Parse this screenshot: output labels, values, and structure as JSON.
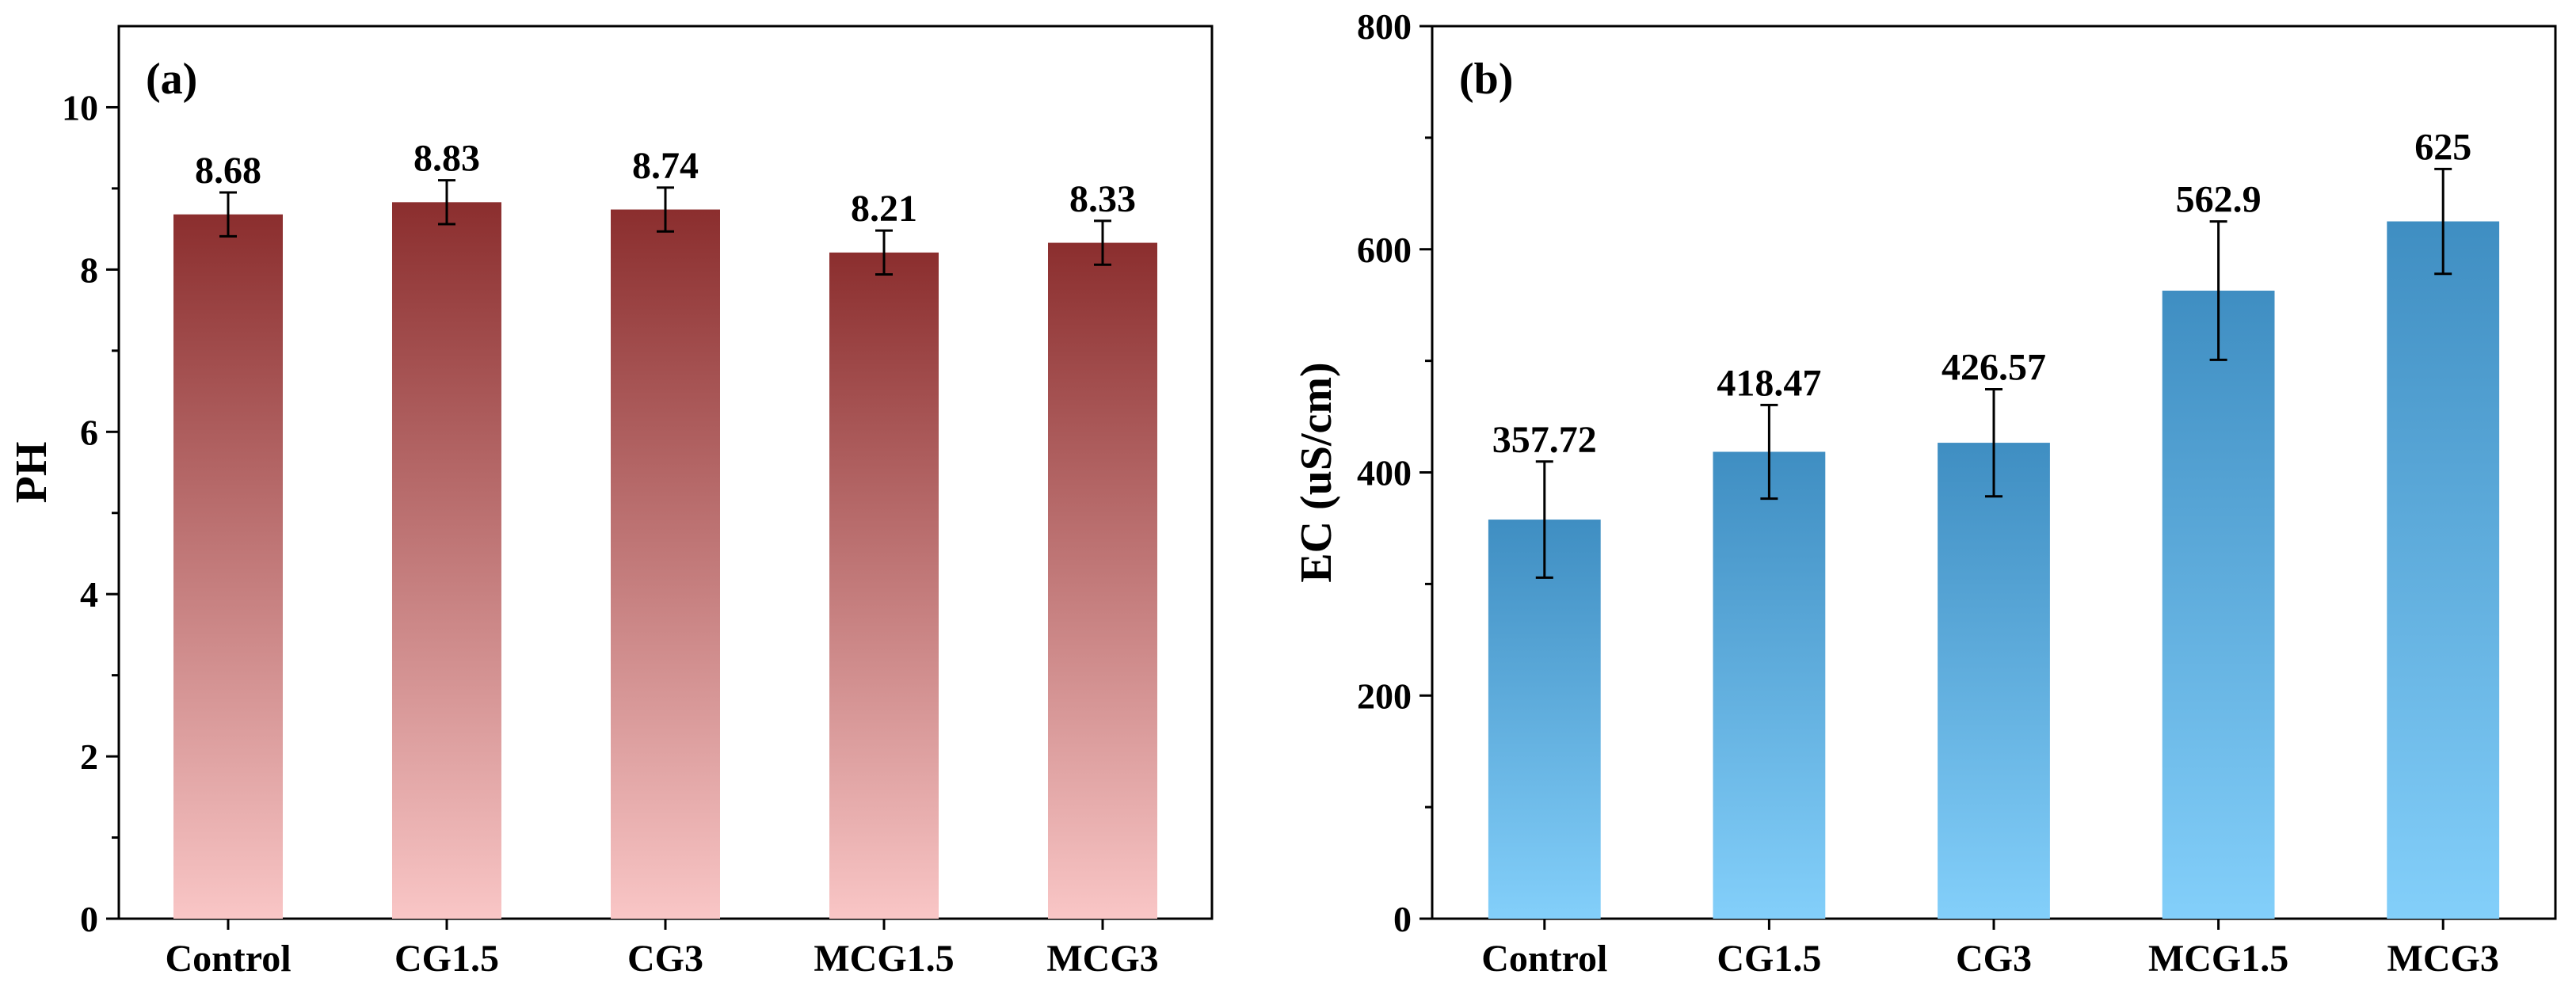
{
  "chart_data": [
    {
      "type": "bar",
      "panel_label": "(a)",
      "title": "",
      "xlabel": "",
      "ylabel": "PH",
      "categories": [
        "Control",
        "CG1.5",
        "CG3",
        "MCG1.5",
        "MCG3"
      ],
      "values": [
        8.68,
        8.83,
        8.74,
        8.21,
        8.33
      ],
      "value_labels": [
        "8.68",
        "8.83",
        "8.74",
        "8.21",
        "8.33"
      ],
      "errors": [
        0.27,
        0.27,
        0.27,
        0.27,
        0.27
      ],
      "ylim": [
        0,
        11
      ],
      "yticks": [
        0,
        2,
        4,
        6,
        8,
        10
      ],
      "ytick_labels": [
        "0",
        "2",
        "4",
        "6",
        "8",
        "10"
      ],
      "gradient": {
        "top": "#8b2e2e",
        "bottom": "#f9c6c6"
      },
      "grid": false
    },
    {
      "type": "bar",
      "panel_label": "(b)",
      "title": "",
      "xlabel": "",
      "ylabel": "EC (uS/cm)",
      "categories": [
        "Control",
        "CG1.5",
        "CG3",
        "MCG1.5",
        "MCG3"
      ],
      "values": [
        357.72,
        418.47,
        426.57,
        562.9,
        625
      ],
      "value_labels": [
        "357.72",
        "418.47",
        "426.57",
        "562.9",
        "625"
      ],
      "errors": [
        52,
        42,
        48,
        62,
        47
      ],
      "ylim": [
        0,
        800
      ],
      "yticks": [
        0,
        200,
        400,
        600,
        800
      ],
      "ytick_labels": [
        "0",
        "200",
        "400",
        "600",
        "800"
      ],
      "gradient": {
        "top": "#3f8ec2",
        "bottom": "#83cffa"
      },
      "grid": false
    }
  ]
}
